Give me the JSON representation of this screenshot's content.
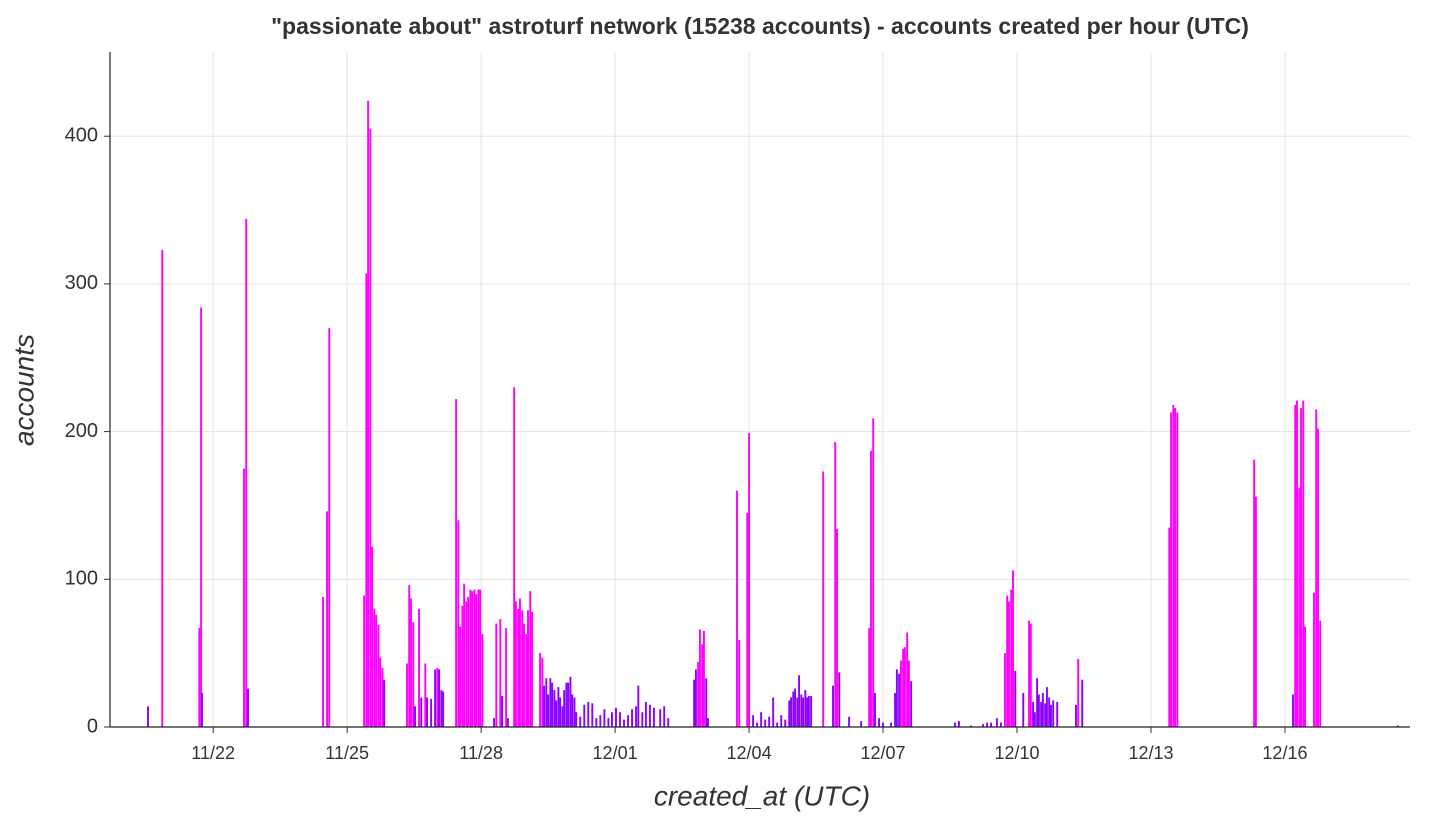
{
  "chart_data": {
    "type": "bar",
    "title": "\"passionate about\" astroturf network (15238 accounts) - accounts created per hour (UTC)",
    "x_label": "created_at (UTC)",
    "y_label": "accounts",
    "xlim": [
      19.69,
      48.8
    ],
    "xticks": [
      {
        "value": 22,
        "label": "11/22"
      },
      {
        "value": 25,
        "label": "11/25"
      },
      {
        "value": 28,
        "label": "11/28"
      },
      {
        "value": 31,
        "label": "12/01"
      },
      {
        "value": 34,
        "label": "12/04"
      },
      {
        "value": 37,
        "label": "12/07"
      },
      {
        "value": 40,
        "label": "12/10"
      },
      {
        "value": 43,
        "label": "12/13"
      },
      {
        "value": 46,
        "label": "12/16"
      }
    ],
    "ylim": [
      0,
      457
    ],
    "yticks": [
      0,
      100,
      200,
      300,
      400
    ],
    "grid": true,
    "x": [
      20.54,
      20.86,
      21.69,
      21.73,
      21.75,
      22.69,
      22.74,
      22.78,
      24.46,
      24.55,
      24.6,
      25.38,
      25.43,
      25.47,
      25.52,
      25.56,
      25.61,
      25.65,
      25.7,
      25.74,
      25.79,
      25.83,
      26.34,
      26.39,
      26.43,
      26.48,
      26.52,
      26.61,
      26.66,
      26.75,
      26.79,
      26.88,
      26.97,
      27.02,
      27.06,
      27.11,
      27.15,
      27.44,
      27.49,
      27.53,
      27.58,
      27.62,
      27.67,
      27.71,
      27.76,
      27.8,
      27.85,
      27.89,
      27.94,
      27.98,
      28.03,
      28.29,
      28.34,
      28.43,
      28.47,
      28.56,
      28.6,
      28.74,
      28.78,
      28.83,
      28.87,
      28.92,
      28.96,
      29.01,
      29.05,
      29.1,
      29.14,
      29.32,
      29.37,
      29.41,
      29.46,
      29.5,
      29.55,
      29.59,
      29.64,
      29.68,
      29.73,
      29.77,
      29.82,
      29.86,
      29.91,
      29.95,
      30.0,
      30.04,
      30.09,
      30.13,
      30.22,
      30.31,
      30.4,
      30.49,
      30.58,
      30.67,
      30.76,
      30.85,
      30.93,
      31.02,
      31.11,
      31.2,
      31.29,
      31.38,
      31.47,
      31.52,
      31.61,
      31.69,
      31.78,
      31.87,
      32.01,
      32.1,
      32.19,
      32.77,
      32.81,
      32.86,
      32.9,
      32.95,
      32.99,
      33.04,
      33.08,
      33.73,
      33.78,
      33.96,
      34.0,
      34.09,
      34.18,
      34.27,
      34.36,
      34.45,
      34.54,
      34.63,
      34.72,
      34.81,
      34.9,
      34.94,
      34.99,
      35.03,
      35.08,
      35.12,
      35.17,
      35.21,
      35.26,
      35.3,
      35.34,
      35.39,
      35.66,
      35.88,
      35.93,
      35.97,
      36.02,
      36.24,
      36.51,
      36.69,
      36.73,
      36.78,
      36.82,
      36.91,
      37.0,
      37.18,
      37.27,
      37.31,
      37.36,
      37.4,
      37.45,
      37.49,
      37.54,
      37.58,
      37.63,
      38.61,
      38.7,
      38.97,
      39.24,
      39.33,
      39.42,
      39.55,
      39.64,
      39.73,
      39.78,
      39.82,
      39.87,
      39.91,
      39.96,
      40.14,
      40.27,
      40.31,
      40.36,
      40.4,
      40.45,
      40.49,
      40.54,
      40.58,
      40.63,
      40.67,
      40.72,
      40.76,
      40.81,
      40.9,
      41.32,
      41.37,
      41.46,
      43.41,
      43.45,
      43.5,
      43.54,
      43.59,
      45.31,
      45.35,
      46.18,
      46.23,
      46.27,
      46.32,
      46.36,
      46.41,
      46.45,
      46.65,
      46.7,
      46.74,
      46.79,
      48.53
    ],
    "values": [
      14,
      323,
      67,
      284,
      23,
      175,
      344,
      26,
      88,
      146,
      270,
      89,
      307,
      424,
      405,
      122,
      80,
      76,
      69,
      47,
      40,
      32,
      43,
      96,
      87,
      71,
      14,
      80,
      20,
      43,
      20,
      19,
      39,
      40,
      39,
      25,
      24,
      222,
      140,
      68,
      82,
      97,
      85,
      88,
      93,
      92,
      93,
      90,
      93,
      93,
      63,
      6,
      70,
      73,
      21,
      67,
      6,
      230,
      85,
      80,
      87,
      79,
      70,
      63,
      79,
      92,
      78,
      50,
      47,
      28,
      33,
      22,
      33,
      30,
      25,
      18,
      27,
      20,
      14,
      25,
      30,
      30,
      34,
      22,
      20,
      10,
      7,
      15,
      17,
      16,
      6,
      8,
      12,
      6,
      10,
      13,
      10,
      5,
      8,
      12,
      14,
      28,
      10,
      17,
      15,
      13,
      12,
      14,
      6,
      32,
      39,
      44,
      66,
      56,
      65,
      33,
      6,
      160,
      59,
      145,
      199,
      8,
      3,
      10,
      5,
      7,
      20,
      3,
      8,
      5,
      18,
      20,
      24,
      26,
      20,
      35,
      22,
      20,
      25,
      20,
      21,
      21,
      173,
      28,
      193,
      134,
      37,
      7,
      4,
      67,
      187,
      209,
      23,
      6,
      3,
      3,
      23,
      39,
      36,
      45,
      53,
      54,
      64,
      45,
      31,
      3,
      4,
      1,
      2,
      3,
      3,
      6,
      3,
      50,
      89,
      85,
      93,
      106,
      38,
      23,
      72,
      70,
      17,
      10,
      33,
      22,
      17,
      23,
      16,
      27,
      20,
      15,
      18,
      17,
      15,
      46,
      32,
      135,
      213,
      218,
      216,
      213,
      181,
      156,
      22,
      218,
      221,
      162,
      216,
      221,
      68,
      91,
      215,
      202,
      72,
      1
    ],
    "colors": [
      "#8b00ff",
      "#ff00ff",
      "#ff00ff",
      "#ff00ff",
      "#8b00ff",
      "#ff00ff",
      "#ff00ff",
      "#8b00ff",
      "#ff00ff",
      "#ff00ff",
      "#ff00ff",
      "#ff00ff",
      "#ff00ff",
      "#ff00ff",
      "#ff00ff",
      "#ff00ff",
      "#ff00ff",
      "#ff00ff",
      "#ff00ff",
      "#ff00ff",
      "#ff00ff",
      "#8b00ff",
      "#ff00ff",
      "#ff00ff",
      "#ff00ff",
      "#ff00ff",
      "#8b00ff",
      "#ff00ff",
      "#8b00ff",
      "#ff00ff",
      "#8b00ff",
      "#8b00ff",
      "#8b00ff",
      "#ff00ff",
      "#8b00ff",
      "#8b00ff",
      "#8b00ff",
      "#ff00ff",
      "#ff00ff",
      "#ff00ff",
      "#ff00ff",
      "#ff00ff",
      "#ff00ff",
      "#ff00ff",
      "#ff00ff",
      "#ff00ff",
      "#ff00ff",
      "#ff00ff",
      "#ff00ff",
      "#ff00ff",
      "#ff00ff",
      "#8b00ff",
      "#ff00ff",
      "#ff00ff",
      "#8b00ff",
      "#ff00ff",
      "#8b00ff",
      "#ff00ff",
      "#ff00ff",
      "#ff00ff",
      "#ff00ff",
      "#ff00ff",
      "#ff00ff",
      "#ff00ff",
      "#ff00ff",
      "#ff00ff",
      "#ff00ff",
      "#ff00ff",
      "#ff00ff",
      "#8b00ff",
      "#8b00ff",
      "#8b00ff",
      "#8b00ff",
      "#8b00ff",
      "#8b00ff",
      "#8b00ff",
      "#8b00ff",
      "#8b00ff",
      "#8b00ff",
      "#8b00ff",
      "#8b00ff",
      "#8b00ff",
      "#8b00ff",
      "#8b00ff",
      "#8b00ff",
      "#8b00ff",
      "#8b00ff",
      "#8b00ff",
      "#8b00ff",
      "#8b00ff",
      "#8b00ff",
      "#8b00ff",
      "#8b00ff",
      "#8b00ff",
      "#8b00ff",
      "#8b00ff",
      "#8b00ff",
      "#8b00ff",
      "#8b00ff",
      "#8b00ff",
      "#8b00ff",
      "#8b00ff",
      "#8b00ff",
      "#8b00ff",
      "#8b00ff",
      "#8b00ff",
      "#8b00ff",
      "#8b00ff",
      "#8b00ff",
      "#8b00ff",
      "#8b00ff",
      "#ff00ff",
      "#ff00ff",
      "#ff00ff",
      "#ff00ff",
      "#8b00ff",
      "#8b00ff",
      "#ff00ff",
      "#ff00ff",
      "#ff00ff",
      "#ff00ff",
      "#8b00ff",
      "#8b00ff",
      "#8b00ff",
      "#8b00ff",
      "#8b00ff",
      "#8b00ff",
      "#8b00ff",
      "#8b00ff",
      "#8b00ff",
      "#8b00ff",
      "#8b00ff",
      "#8b00ff",
      "#8b00ff",
      "#8b00ff",
      "#8b00ff",
      "#8b00ff",
      "#8b00ff",
      "#8b00ff",
      "#8b00ff",
      "#8b00ff",
      "#8b00ff",
      "#ff00ff",
      "#8b00ff",
      "#ff00ff",
      "#ff00ff",
      "#8b00ff",
      "#8b00ff",
      "#8b00ff",
      "#ff00ff",
      "#ff00ff",
      "#ff00ff",
      "#8b00ff",
      "#8b00ff",
      "#8b00ff",
      "#8b00ff",
      "#8b00ff",
      "#8b00ff",
      "#8b00ff",
      "#ff00ff",
      "#ff00ff",
      "#ff00ff",
      "#ff00ff",
      "#ff00ff",
      "#8b00ff",
      "#8b00ff",
      "#8b00ff",
      "#8b00ff",
      "#8b00ff",
      "#8b00ff",
      "#8b00ff",
      "#8b00ff",
      "#8b00ff",
      "#ff00ff",
      "#ff00ff",
      "#ff00ff",
      "#ff00ff",
      "#ff00ff",
      "#8b00ff",
      "#8b00ff",
      "#ff00ff",
      "#ff00ff",
      "#8b00ff",
      "#8b00ff",
      "#8b00ff",
      "#8b00ff",
      "#8b00ff",
      "#8b00ff",
      "#8b00ff",
      "#8b00ff",
      "#8b00ff",
      "#8b00ff",
      "#8b00ff",
      "#8b00ff",
      "#8b00ff",
      "#ff00ff",
      "#8b00ff",
      "#ff00ff",
      "#ff00ff",
      "#ff00ff",
      "#ff00ff",
      "#ff00ff",
      "#ff00ff",
      "#ff00ff",
      "#8b00ff",
      "#ff00ff",
      "#ff00ff",
      "#ff00ff",
      "#ff00ff",
      "#ff00ff",
      "#ff00ff",
      "#ff00ff",
      "#ff00ff",
      "#ff00ff",
      "#ff00ff",
      "#8b00ff"
    ]
  }
}
